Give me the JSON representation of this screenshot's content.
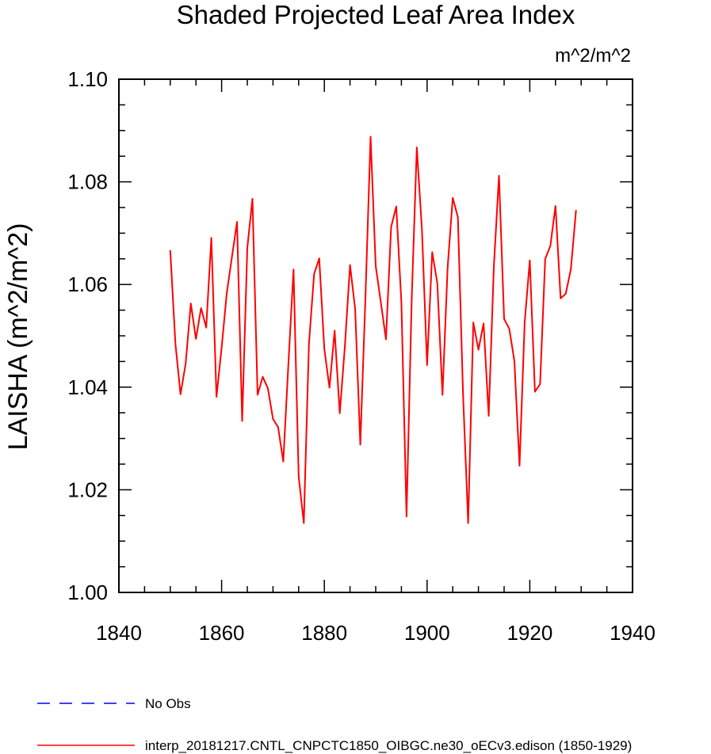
{
  "chart_data": {
    "type": "line",
    "title": "Shaded Projected Leaf Area Index",
    "units": "m^2/m^2",
    "ylabel": "LAISHA  (m^2/m^2)",
    "xlabel": "",
    "xlim": [
      1840,
      1940
    ],
    "ylim": [
      1.0,
      1.1
    ],
    "x_ticks": [
      "1840",
      "1860",
      "1880",
      "1900",
      "1920",
      "1940"
    ],
    "y_ticks": [
      "1.00",
      "1.02",
      "1.04",
      "1.06",
      "1.08",
      "1.10"
    ],
    "legend": [
      {
        "name": "No Obs",
        "color": "#0000ff",
        "dashed": true
      },
      {
        "name": "interp_20181217.CNTL_CNPCTC1850_OIBGC.ne30_oECv3.edison (1850-1929)",
        "color": "#ff0000",
        "dashed": false
      }
    ],
    "series": [
      {
        "name": "interp_20181217.CNTL_CNPCTC1850_OIBGC.ne30_oECv3.edison (1850-1929)",
        "color": "#ff0000",
        "x": [
          1850,
          1851,
          1852,
          1853,
          1854,
          1855,
          1856,
          1857,
          1858,
          1859,
          1860,
          1861,
          1862,
          1863,
          1864,
          1865,
          1866,
          1867,
          1868,
          1869,
          1870,
          1871,
          1872,
          1873,
          1874,
          1875,
          1876,
          1877,
          1878,
          1879,
          1880,
          1881,
          1882,
          1883,
          1884,
          1885,
          1886,
          1887,
          1888,
          1889,
          1890,
          1891,
          1892,
          1893,
          1894,
          1895,
          1896,
          1897,
          1898,
          1899,
          1900,
          1901,
          1902,
          1903,
          1904,
          1905,
          1906,
          1907,
          1908,
          1909,
          1910,
          1911,
          1912,
          1913,
          1914,
          1915,
          1916,
          1917,
          1918,
          1919,
          1920,
          1921,
          1922,
          1923,
          1924,
          1925,
          1926,
          1927,
          1928,
          1929
        ],
        "values": [
          1.0667,
          1.0485,
          1.0386,
          1.0446,
          1.0563,
          1.0494,
          1.0554,
          1.0516,
          1.0691,
          1.0381,
          1.0477,
          1.0583,
          1.0653,
          1.0722,
          1.0334,
          1.0671,
          1.0767,
          1.0385,
          1.042,
          1.0398,
          1.0338,
          1.0322,
          1.0255,
          1.0445,
          1.0629,
          1.0226,
          1.0135,
          1.0484,
          1.062,
          1.0651,
          1.0474,
          1.0399,
          1.051,
          1.0349,
          1.048,
          1.0638,
          1.0552,
          1.0288,
          1.0575,
          1.0888,
          1.0636,
          1.0565,
          1.0493,
          1.0712,
          1.0752,
          1.0565,
          1.0148,
          1.0569,
          1.0867,
          1.0707,
          1.0443,
          1.0663,
          1.0602,
          1.0385,
          1.0633,
          1.0769,
          1.0731,
          1.0387,
          1.0135,
          1.0526,
          1.0473,
          1.0524,
          1.0344,
          1.0635,
          1.0812,
          1.0533,
          1.0514,
          1.0451,
          1.0247,
          1.0526,
          1.0647,
          1.0391,
          1.0406,
          1.065,
          1.0675,
          1.0753,
          1.0573,
          1.0582,
          1.063,
          1.0745
        ]
      }
    ]
  }
}
